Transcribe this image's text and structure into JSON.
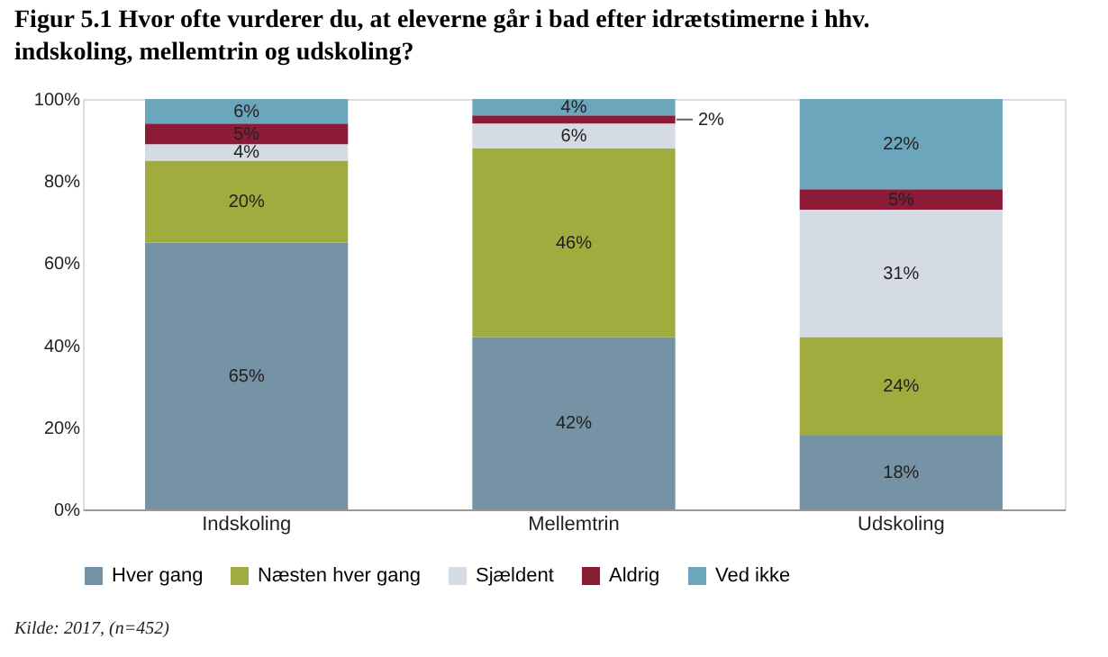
{
  "chart_data": {
    "type": "bar",
    "stacked": true,
    "title": "Figur 5.1 Hvor ofte vurderer du, at eleverne går i bad efter idrætstimerne i hhv. indskoling, mellemtrin og udskoling?",
    "categories": [
      "Indskoling",
      "Mellemtrin",
      "Udskoling"
    ],
    "series": [
      {
        "name": "Hver gang",
        "color": "#7692a5",
        "values": [
          65,
          42,
          18
        ],
        "value_labels": [
          "65%",
          "42%",
          "18%"
        ]
      },
      {
        "name": "Næsten hver gang",
        "color": "#a0ad3e",
        "values": [
          20,
          46,
          24
        ],
        "value_labels": [
          "20%",
          "46%",
          "24%"
        ]
      },
      {
        "name": "Sjældent",
        "color": "#d5dbe2",
        "values": [
          4,
          6,
          31
        ],
        "value_labels": [
          "4%",
          "6%",
          "31%"
        ]
      },
      {
        "name": "Aldrig",
        "color": "#8c1b38",
        "values": [
          5,
          2,
          5
        ],
        "value_labels": [
          "5%",
          "2%",
          "5%"
        ]
      },
      {
        "name": "Ved ikke",
        "color": "#6ba6bc",
        "values": [
          6,
          4,
          22
        ],
        "value_labels": [
          "6%",
          "4%",
          "22%"
        ]
      }
    ],
    "ylim": [
      0,
      100
    ],
    "yticks": [
      {
        "value": 0,
        "label": "0%"
      },
      {
        "value": 20,
        "label": "20%"
      },
      {
        "value": 40,
        "label": "40%"
      },
      {
        "value": 60,
        "label": "60%"
      },
      {
        "value": 80,
        "label": "80%"
      },
      {
        "value": 100,
        "label": "100%"
      }
    ],
    "grid": false,
    "legend": "bottom",
    "annotations": [
      "Kilde: 2017, (n=452)"
    ]
  }
}
